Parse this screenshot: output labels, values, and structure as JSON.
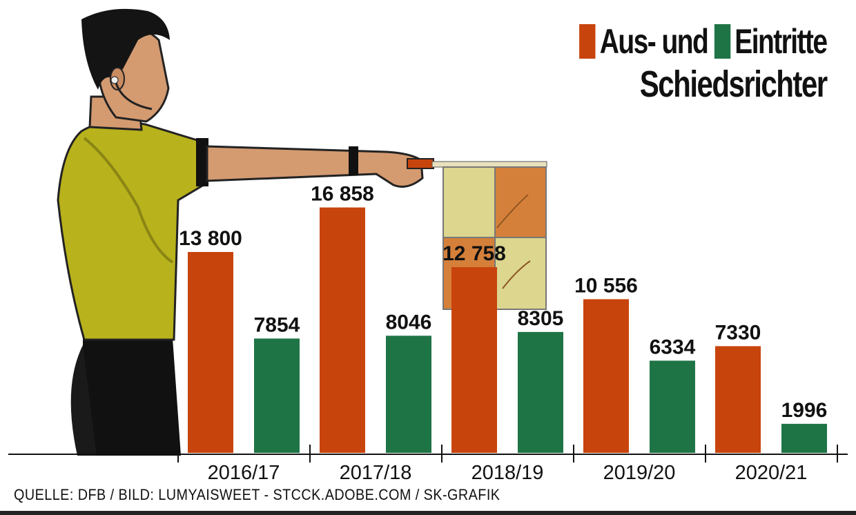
{
  "chart_data": {
    "type": "bar",
    "title_line1_a": "Aus- und",
    "title_line1_b": "Eintritte",
    "title_line2": "Schiedsrichter",
    "categories": [
      "2016/17",
      "2017/18",
      "2018/19",
      "2019/20",
      "2020/21"
    ],
    "series": [
      {
        "name": "Aus-",
        "color": "#c8440d",
        "values": [
          13800,
          16858,
          12758,
          10556,
          7330
        ],
        "labels": [
          "13 800",
          "16 858",
          "12 758",
          "10 556",
          "7330"
        ]
      },
      {
        "name": "Eintritte",
        "color": "#1f7446",
        "values": [
          7854,
          8046,
          8305,
          6334,
          1996
        ],
        "labels": [
          "7854",
          "8046",
          "8305",
          "6334",
          "1996"
        ]
      }
    ],
    "ylim": [
      0,
      18000
    ],
    "xlabel": "",
    "ylabel": "",
    "grid": false,
    "legend": "top-right"
  },
  "source": "QUELLE: DFB / BILD: LUMYAISWEET - STCCK.ADOBE.COM / SK-GRAFIK"
}
